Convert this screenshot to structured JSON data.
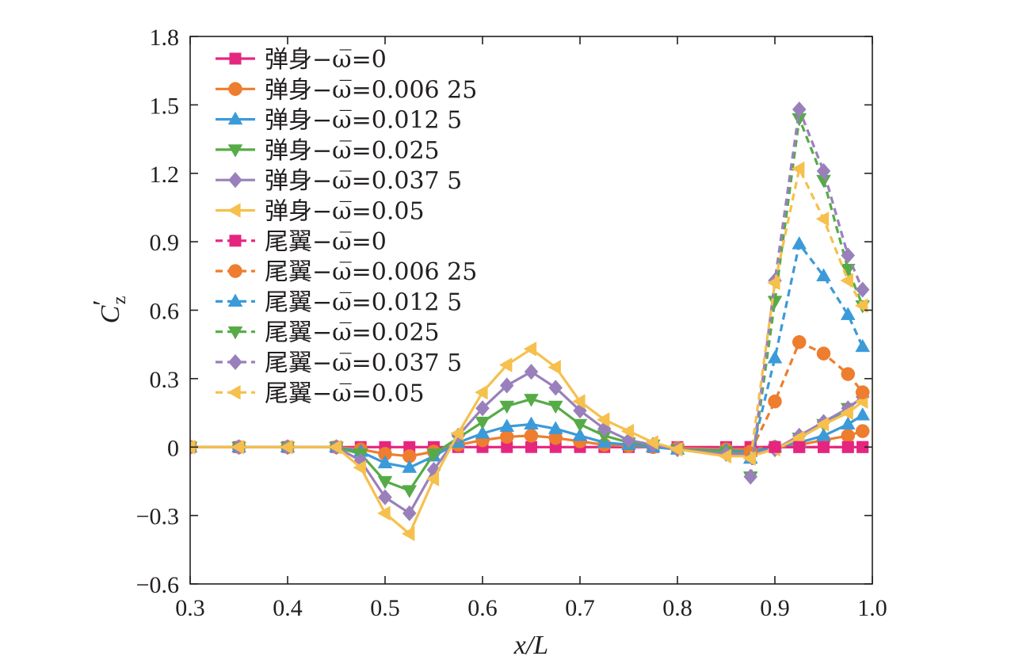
{
  "chart_data": {
    "type": "line",
    "xlabel": "x/L",
    "ylabel_main": "C",
    "ylabel_prime": "′",
    "ylabel_sub": "z",
    "xlim": [
      0.3,
      1.0
    ],
    "ylim": [
      -0.6,
      1.8
    ],
    "x_ticks": [
      0.3,
      0.4,
      0.5,
      0.6,
      0.7,
      0.8,
      0.9,
      1.0
    ],
    "x_tick_labels": [
      "0.3",
      "0.4",
      "0.5",
      "0.6",
      "0.7",
      "0.8",
      "0.9",
      "1.0"
    ],
    "y_ticks": [
      -0.6,
      -0.3,
      0,
      0.3,
      0.6,
      0.9,
      1.2,
      1.5,
      1.8
    ],
    "y_tick_labels": [
      "−0.6",
      "−0.3",
      "0",
      "0.3",
      "0.6",
      "0.9",
      "1.2",
      "1.5",
      "1.8"
    ],
    "legend_position": "top-left",
    "grid": false,
    "series": [
      {
        "name": "弹身−ω̅=0",
        "color": "#e5267f",
        "marker": "square",
        "dash": false,
        "x": [
          0.3,
          0.35,
          0.4,
          0.45,
          0.475,
          0.5,
          0.525,
          0.55,
          0.575,
          0.6,
          0.625,
          0.65,
          0.675,
          0.7,
          0.725,
          0.75,
          0.775,
          0.8,
          0.85,
          0.875,
          0.9,
          0.925,
          0.95,
          0.975,
          0.99
        ],
        "y": [
          0,
          0,
          0,
          0,
          0,
          0,
          0,
          0,
          0,
          0,
          0,
          0,
          0,
          0,
          0,
          0,
          0,
          0,
          0,
          0,
          0,
          0,
          0,
          0,
          0
        ]
      },
      {
        "name": "弹身−ω̅=0.006 25",
        "color": "#ee7d2f",
        "marker": "circle",
        "dash": false,
        "x": [
          0.3,
          0.35,
          0.4,
          0.45,
          0.475,
          0.5,
          0.525,
          0.55,
          0.575,
          0.6,
          0.625,
          0.65,
          0.675,
          0.7,
          0.725,
          0.75,
          0.775,
          0.8,
          0.85,
          0.875,
          0.9,
          0.925,
          0.95,
          0.975,
          0.99
        ],
        "y": [
          0,
          0,
          0,
          0,
          -0.01,
          -0.03,
          -0.04,
          -0.02,
          0.01,
          0.03,
          0.045,
          0.05,
          0.04,
          0.025,
          0.01,
          0.005,
          0,
          -0.005,
          -0.01,
          -0.01,
          0,
          0.01,
          0.03,
          0.05,
          0.07
        ]
      },
      {
        "name": "弹身−ω̅=0.012 5",
        "color": "#3b9ad9",
        "marker": "triangle-up",
        "dash": false,
        "x": [
          0.3,
          0.35,
          0.4,
          0.45,
          0.475,
          0.5,
          0.525,
          0.55,
          0.575,
          0.6,
          0.625,
          0.65,
          0.675,
          0.7,
          0.725,
          0.75,
          0.775,
          0.8,
          0.85,
          0.875,
          0.9,
          0.925,
          0.95,
          0.975,
          0.99
        ],
        "y": [
          0,
          0,
          0,
          0,
          -0.02,
          -0.07,
          -0.09,
          -0.04,
          0.02,
          0.06,
          0.09,
          0.1,
          0.08,
          0.05,
          0.02,
          0.01,
          0,
          -0.01,
          -0.015,
          -0.02,
          0,
          0.02,
          0.05,
          0.1,
          0.14
        ]
      },
      {
        "name": "弹身−ω̅=0.025",
        "color": "#56ab47",
        "marker": "triangle-down",
        "dash": false,
        "x": [
          0.3,
          0.35,
          0.4,
          0.45,
          0.475,
          0.5,
          0.525,
          0.55,
          0.575,
          0.6,
          0.625,
          0.65,
          0.675,
          0.7,
          0.725,
          0.75,
          0.775,
          0.8,
          0.85,
          0.875,
          0.9,
          0.925,
          0.95,
          0.975,
          0.99
        ],
        "y": [
          0,
          0,
          0,
          0,
          -0.03,
          -0.15,
          -0.19,
          -0.03,
          0.04,
          0.11,
          0.18,
          0.21,
          0.18,
          0.1,
          0.05,
          0.02,
          0.01,
          -0.01,
          -0.02,
          -0.03,
          -0.01,
          0.04,
          0.1,
          0.17,
          0.22
        ]
      },
      {
        "name": "弹身−ω̅=0.037 5",
        "color": "#9a80bb",
        "marker": "diamond",
        "dash": false,
        "x": [
          0.3,
          0.35,
          0.4,
          0.45,
          0.475,
          0.5,
          0.525,
          0.55,
          0.575,
          0.6,
          0.625,
          0.65,
          0.675,
          0.7,
          0.725,
          0.75,
          0.775,
          0.8,
          0.85,
          0.875,
          0.9,
          0.925,
          0.95,
          0.975,
          0.99
        ],
        "y": [
          0,
          0,
          0,
          0,
          -0.06,
          -0.22,
          -0.29,
          -0.1,
          0.05,
          0.17,
          0.27,
          0.33,
          0.26,
          0.16,
          0.08,
          0.03,
          0.01,
          -0.01,
          -0.03,
          -0.03,
          -0.01,
          0.05,
          0.11,
          0.17,
          0.22
        ]
      },
      {
        "name": "弹身−ω̅=0.05",
        "color": "#f6c04d",
        "marker": "triangle-left",
        "dash": false,
        "x": [
          0.3,
          0.35,
          0.4,
          0.45,
          0.475,
          0.5,
          0.525,
          0.55,
          0.575,
          0.6,
          0.625,
          0.65,
          0.675,
          0.7,
          0.725,
          0.75,
          0.775,
          0.8,
          0.85,
          0.875,
          0.9,
          0.925,
          0.95,
          0.975,
          0.99
        ],
        "y": [
          0,
          0,
          0,
          0,
          -0.09,
          -0.29,
          -0.38,
          -0.14,
          0.06,
          0.24,
          0.36,
          0.43,
          0.35,
          0.2,
          0.12,
          0.07,
          0.02,
          -0.01,
          -0.04,
          -0.04,
          -0.01,
          0.04,
          0.1,
          0.15,
          0.2
        ]
      },
      {
        "name": "尾翼−ω̅=0",
        "color": "#e5267f",
        "marker": "square",
        "dash": true,
        "x": [
          0.875,
          0.9,
          0.925,
          0.95,
          0.975,
          0.99
        ],
        "y": [
          0,
          0,
          0,
          0,
          0,
          0
        ]
      },
      {
        "name": "尾翼−ω̅=0.006 25",
        "color": "#ee7d2f",
        "marker": "circle",
        "dash": true,
        "x": [
          0.875,
          0.9,
          0.925,
          0.95,
          0.975,
          0.99
        ],
        "y": [
          -0.02,
          0.2,
          0.46,
          0.41,
          0.32,
          0.24
        ]
      },
      {
        "name": "尾翼−ω̅=0.012 5",
        "color": "#3b9ad9",
        "marker": "triangle-up",
        "dash": true,
        "x": [
          0.875,
          0.9,
          0.925,
          0.95,
          0.975,
          0.99
        ],
        "y": [
          -0.05,
          0.39,
          0.89,
          0.75,
          0.58,
          0.44
        ]
      },
      {
        "name": "尾翼−ω̅=0.025",
        "color": "#56ab47",
        "marker": "triangle-down",
        "dash": true,
        "x": [
          0.875,
          0.9,
          0.925,
          0.95,
          0.975,
          0.99
        ],
        "y": [
          -0.13,
          0.64,
          1.44,
          1.17,
          0.78,
          0.62
        ]
      },
      {
        "name": "尾翼−ω̅=0.037 5",
        "color": "#9a80bb",
        "marker": "diamond",
        "dash": true,
        "x": [
          0.875,
          0.9,
          0.925,
          0.95,
          0.975,
          0.99
        ],
        "y": [
          -0.13,
          0.73,
          1.48,
          1.21,
          0.84,
          0.69
        ]
      },
      {
        "name": "尾翼−ω̅=0.05",
        "color": "#f6c04d",
        "marker": "triangle-left",
        "dash": true,
        "x": [
          0.875,
          0.9,
          0.925,
          0.95,
          0.975,
          0.99
        ],
        "y": [
          -0.05,
          0.72,
          1.22,
          1.0,
          0.73,
          0.62
        ]
      }
    ]
  }
}
